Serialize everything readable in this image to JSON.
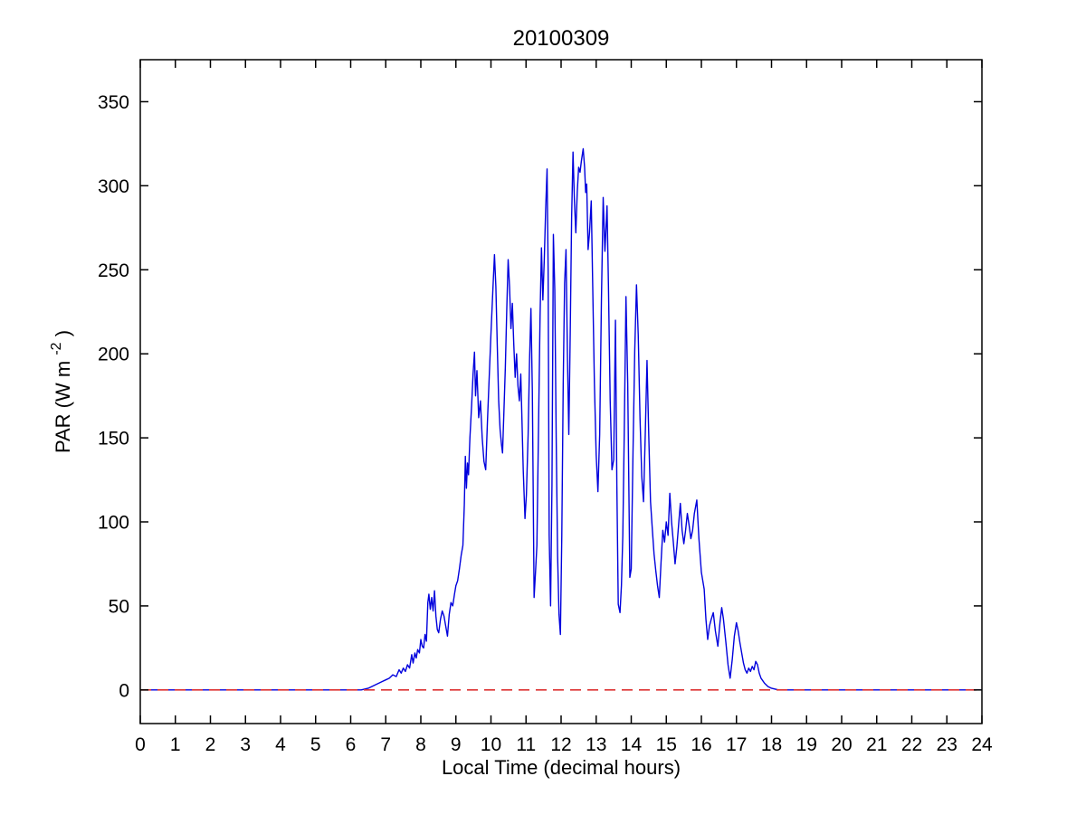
{
  "figure": {
    "background": "#ffffff"
  },
  "chart_data": {
    "type": "line",
    "title": "20100309",
    "xlabel": "Local Time (decimal hours)",
    "ylabel": {
      "prefix": "PAR (W m",
      "superscript": "-2",
      "suffix": ")"
    },
    "xlim": [
      0,
      24
    ],
    "ylim": [
      -20,
      375
    ],
    "x_ticks": [
      0,
      1,
      2,
      3,
      4,
      5,
      6,
      7,
      8,
      9,
      10,
      11,
      12,
      13,
      14,
      15,
      16,
      17,
      18,
      19,
      20,
      21,
      22,
      23,
      24
    ],
    "y_ticks": [
      0,
      50,
      100,
      150,
      200,
      250,
      300,
      350
    ],
    "grid": false,
    "legend": "none",
    "axis_color": "#000000",
    "series": [
      {
        "name": "PAR",
        "color": "#0000dd",
        "line_style": "solid",
        "points": [
          [
            0,
            0
          ],
          [
            1,
            0
          ],
          [
            2,
            0
          ],
          [
            3,
            0
          ],
          [
            4,
            0
          ],
          [
            5,
            0
          ],
          [
            6,
            0
          ],
          [
            6.3,
            0
          ],
          [
            6.5,
            1
          ],
          [
            6.7,
            3
          ],
          [
            6.9,
            5
          ],
          [
            7.0,
            6
          ],
          [
            7.1,
            7
          ],
          [
            7.2,
            9
          ],
          [
            7.3,
            8
          ],
          [
            7.38,
            12
          ],
          [
            7.44,
            10
          ],
          [
            7.5,
            13
          ],
          [
            7.56,
            11
          ],
          [
            7.62,
            15
          ],
          [
            7.68,
            13
          ],
          [
            7.74,
            21
          ],
          [
            7.78,
            16
          ],
          [
            7.83,
            22
          ],
          [
            7.87,
            19
          ],
          [
            7.91,
            24
          ],
          [
            7.96,
            22
          ],
          [
            8.0,
            30
          ],
          [
            8.04,
            26
          ],
          [
            8.08,
            25
          ],
          [
            8.12,
            33
          ],
          [
            8.16,
            29
          ],
          [
            8.2,
            52
          ],
          [
            8.23,
            57
          ],
          [
            8.27,
            48
          ],
          [
            8.31,
            55
          ],
          [
            8.35,
            47
          ],
          [
            8.39,
            59
          ],
          [
            8.43,
            44
          ],
          [
            8.47,
            36
          ],
          [
            8.51,
            34
          ],
          [
            8.56,
            42
          ],
          [
            8.61,
            47
          ],
          [
            8.66,
            44
          ],
          [
            8.71,
            38
          ],
          [
            8.76,
            32
          ],
          [
            8.81,
            45
          ],
          [
            8.86,
            52
          ],
          [
            8.91,
            50
          ],
          [
            8.96,
            57
          ],
          [
            9.0,
            62
          ],
          [
            9.05,
            65
          ],
          [
            9.1,
            72
          ],
          [
            9.15,
            80
          ],
          [
            9.2,
            86
          ],
          [
            9.24,
            110
          ],
          [
            9.27,
            139
          ],
          [
            9.3,
            120
          ],
          [
            9.33,
            135
          ],
          [
            9.36,
            128
          ],
          [
            9.4,
            150
          ],
          [
            9.45,
            170
          ],
          [
            9.49,
            188
          ],
          [
            9.53,
            201
          ],
          [
            9.56,
            175
          ],
          [
            9.6,
            190
          ],
          [
            9.65,
            162
          ],
          [
            9.7,
            172
          ],
          [
            9.75,
            150
          ],
          [
            9.8,
            136
          ],
          [
            9.85,
            131
          ],
          [
            9.9,
            160
          ],
          [
            9.95,
            186
          ],
          [
            10.0,
            212
          ],
          [
            10.05,
            236
          ],
          [
            10.1,
            259
          ],
          [
            10.14,
            240
          ],
          [
            10.18,
            205
          ],
          [
            10.22,
            172
          ],
          [
            10.26,
            155
          ],
          [
            10.3,
            146
          ],
          [
            10.33,
            141
          ],
          [
            10.37,
            166
          ],
          [
            10.41,
            192
          ],
          [
            10.45,
            226
          ],
          [
            10.49,
            256
          ],
          [
            10.53,
            240
          ],
          [
            10.57,
            215
          ],
          [
            10.61,
            230
          ],
          [
            10.65,
            206
          ],
          [
            10.69,
            186
          ],
          [
            10.73,
            200
          ],
          [
            10.77,
            181
          ],
          [
            10.81,
            172
          ],
          [
            10.85,
            188
          ],
          [
            10.88,
            164
          ],
          [
            10.92,
            131
          ],
          [
            10.97,
            102
          ],
          [
            11.01,
            116
          ],
          [
            11.06,
            152
          ],
          [
            11.1,
            196
          ],
          [
            11.14,
            227
          ],
          [
            11.18,
            178
          ],
          [
            11.23,
            55
          ],
          [
            11.27,
            70
          ],
          [
            11.31,
            86
          ],
          [
            11.36,
            162
          ],
          [
            11.4,
            222
          ],
          [
            11.44,
            263
          ],
          [
            11.48,
            232
          ],
          [
            11.52,
            256
          ],
          [
            11.56,
            286
          ],
          [
            11.6,
            310
          ],
          [
            11.63,
            250
          ],
          [
            11.66,
            92
          ],
          [
            11.7,
            50
          ],
          [
            11.74,
            122
          ],
          [
            11.78,
            271
          ],
          [
            11.82,
            238
          ],
          [
            11.86,
            150
          ],
          [
            11.9,
            80
          ],
          [
            11.94,
            45
          ],
          [
            11.98,
            33
          ],
          [
            12.02,
            92
          ],
          [
            12.06,
            182
          ],
          [
            12.1,
            242
          ],
          [
            12.14,
            262
          ],
          [
            12.18,
            200
          ],
          [
            12.22,
            152
          ],
          [
            12.26,
            212
          ],
          [
            12.3,
            281
          ],
          [
            12.34,
            320
          ],
          [
            12.38,
            291
          ],
          [
            12.42,
            272
          ],
          [
            12.46,
            296
          ],
          [
            12.5,
            311
          ],
          [
            12.54,
            308
          ],
          [
            12.58,
            315
          ],
          [
            12.63,
            322
          ],
          [
            12.67,
            311
          ],
          [
            12.7,
            296
          ],
          [
            12.73,
            301
          ],
          [
            12.77,
            262
          ],
          [
            12.81,
            272
          ],
          [
            12.86,
            291
          ],
          [
            12.9,
            242
          ],
          [
            12.95,
            182
          ],
          [
            13.0,
            140
          ],
          [
            13.05,
            118
          ],
          [
            13.1,
            152
          ],
          [
            13.15,
            232
          ],
          [
            13.2,
            293
          ],
          [
            13.25,
            261
          ],
          [
            13.31,
            288
          ],
          [
            13.35,
            241
          ],
          [
            13.4,
            172
          ],
          [
            13.45,
            131
          ],
          [
            13.5,
            137
          ],
          [
            13.55,
            220
          ],
          [
            13.59,
            122
          ],
          [
            13.63,
            51
          ],
          [
            13.68,
            46
          ],
          [
            13.72,
            62
          ],
          [
            13.76,
            92
          ],
          [
            13.8,
            152
          ],
          [
            13.85,
            234
          ],
          [
            13.9,
            182
          ],
          [
            13.96,
            67
          ],
          [
            14.0,
            72
          ],
          [
            14.05,
            141
          ],
          [
            14.1,
            202
          ],
          [
            14.15,
            241
          ],
          [
            14.2,
            211
          ],
          [
            14.25,
            162
          ],
          [
            14.3,
            127
          ],
          [
            14.35,
            112
          ],
          [
            14.4,
            152
          ],
          [
            14.45,
            196
          ],
          [
            14.5,
            151
          ],
          [
            14.55,
            112
          ],
          [
            14.6,
            96
          ],
          [
            14.65,
            81
          ],
          [
            14.7,
            71
          ],
          [
            14.75,
            62
          ],
          [
            14.8,
            55
          ],
          [
            14.85,
            76
          ],
          [
            14.9,
            95
          ],
          [
            14.95,
            88
          ],
          [
            15.0,
            100
          ],
          [
            15.05,
            92
          ],
          [
            15.1,
            117
          ],
          [
            15.15,
            100
          ],
          [
            15.2,
            88
          ],
          [
            15.25,
            75
          ],
          [
            15.3,
            85
          ],
          [
            15.35,
            98
          ],
          [
            15.4,
            111
          ],
          [
            15.45,
            95
          ],
          [
            15.5,
            87
          ],
          [
            15.55,
            95
          ],
          [
            15.6,
            105
          ],
          [
            15.65,
            98
          ],
          [
            15.7,
            90
          ],
          [
            15.75,
            95
          ],
          [
            15.8,
            105
          ],
          [
            15.87,
            113
          ],
          [
            15.93,
            90
          ],
          [
            16.0,
            70
          ],
          [
            16.08,
            60
          ],
          [
            16.13,
            42
          ],
          [
            16.18,
            30
          ],
          [
            16.23,
            38
          ],
          [
            16.28,
            42
          ],
          [
            16.34,
            46
          ],
          [
            16.4,
            35
          ],
          [
            16.47,
            26
          ],
          [
            16.53,
            40
          ],
          [
            16.58,
            49
          ],
          [
            16.63,
            42
          ],
          [
            16.7,
            28
          ],
          [
            16.76,
            15
          ],
          [
            16.82,
            7
          ],
          [
            16.88,
            18
          ],
          [
            16.94,
            32
          ],
          [
            17.0,
            40
          ],
          [
            17.05,
            35
          ],
          [
            17.1,
            28
          ],
          [
            17.15,
            22
          ],
          [
            17.2,
            16
          ],
          [
            17.25,
            12
          ],
          [
            17.3,
            10
          ],
          [
            17.35,
            13
          ],
          [
            17.4,
            11
          ],
          [
            17.45,
            14
          ],
          [
            17.5,
            12
          ],
          [
            17.55,
            17
          ],
          [
            17.6,
            15
          ],
          [
            17.65,
            10
          ],
          [
            17.7,
            7
          ],
          [
            17.8,
            4
          ],
          [
            17.9,
            2
          ],
          [
            18.0,
            1
          ],
          [
            18.2,
            0
          ],
          [
            19,
            0
          ],
          [
            20,
            0
          ],
          [
            21,
            0
          ],
          [
            22,
            0
          ],
          [
            23,
            0
          ],
          [
            24,
            0
          ]
        ]
      },
      {
        "name": "zero-reference",
        "color": "#dd3333",
        "line_style": "dashed",
        "points": [
          [
            0,
            0
          ],
          [
            24,
            0
          ]
        ]
      }
    ]
  }
}
